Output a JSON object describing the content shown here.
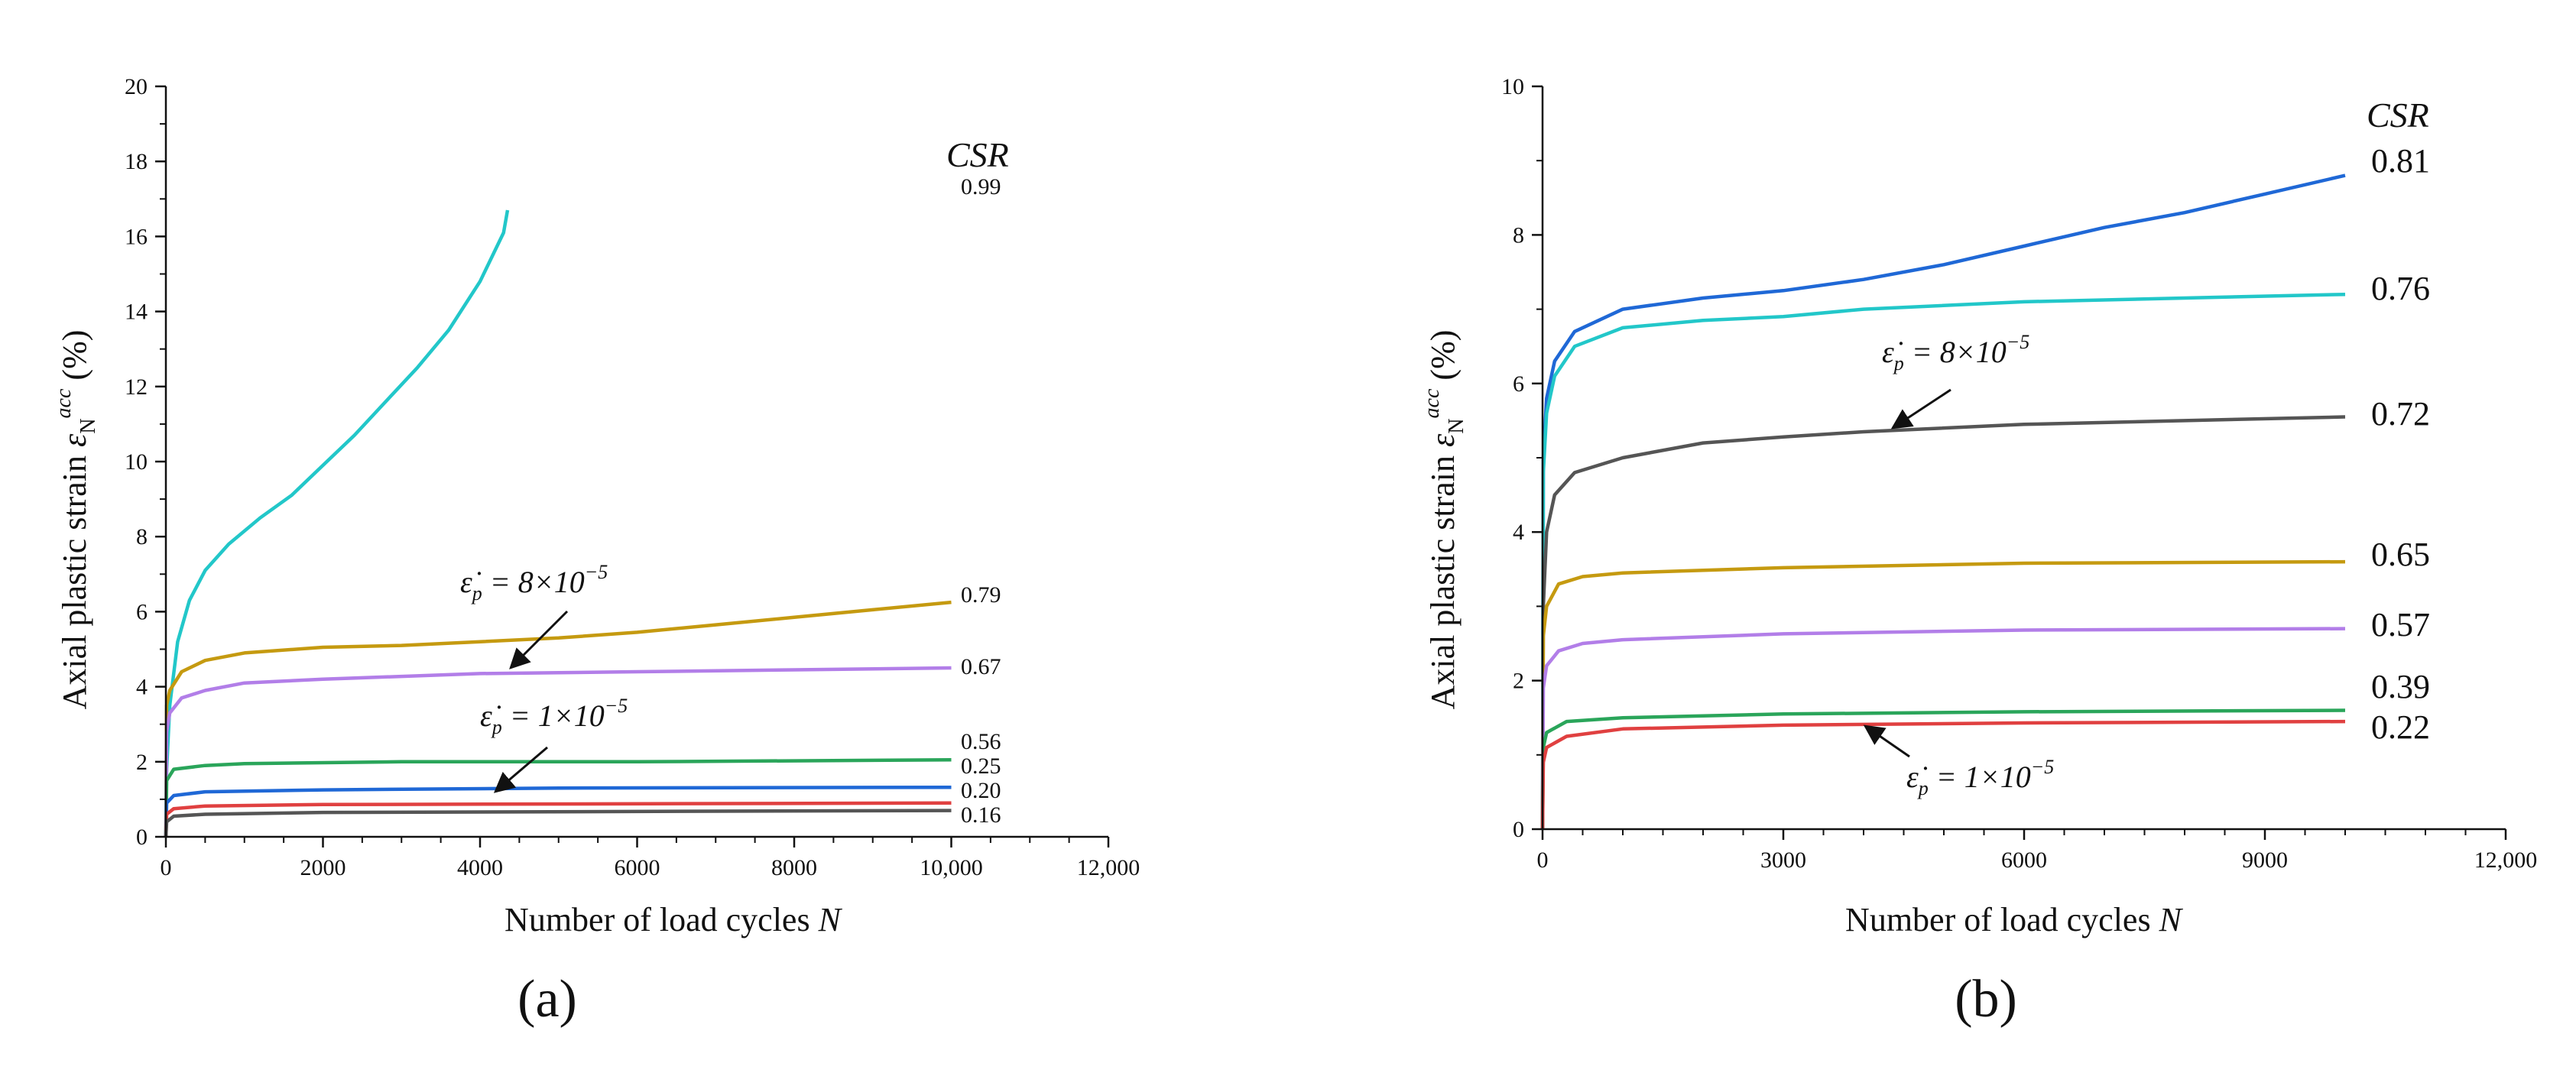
{
  "chart_data": [
    {
      "type": "line",
      "panel_label": "(a)",
      "xlabel": "Number of load cycles N",
      "ylabel": "Axial plastic strain ε_N^acc (%)",
      "xlim": [
        0,
        12000
      ],
      "ylim": [
        0,
        20
      ],
      "x_ticks": [
        "0",
        "2000",
        "4000",
        "6000",
        "8000",
        "10,000",
        "12,000"
      ],
      "y_ticks": [
        "0",
        "2",
        "4",
        "6",
        "8",
        "10",
        "12",
        "14",
        "16",
        "18",
        "20"
      ],
      "legend_title": "CSR",
      "grid": false,
      "series": [
        {
          "name": "0.99",
          "color": "#22c7c9",
          "points": [
            [
              0,
              0
            ],
            [
              10,
              1.8
            ],
            [
              50,
              3.5
            ],
            [
              150,
              5.2
            ],
            [
              300,
              6.3
            ],
            [
              500,
              7.1
            ],
            [
              800,
              7.8
            ],
            [
              1200,
              8.5
            ],
            [
              1600,
              9.1
            ],
            [
              2000,
              9.9
            ],
            [
              2400,
              10.7
            ],
            [
              2800,
              11.6
            ],
            [
              3200,
              12.5
            ],
            [
              3600,
              13.5
            ],
            [
              4000,
              14.8
            ],
            [
              4300,
              16.1
            ],
            [
              4350,
              16.7
            ]
          ]
        },
        {
          "name": "0.79",
          "color": "#c59a10",
          "points": [
            [
              0,
              0
            ],
            [
              10,
              3.5
            ],
            [
              50,
              3.9
            ],
            [
              200,
              4.4
            ],
            [
              500,
              4.7
            ],
            [
              1000,
              4.9
            ],
            [
              2000,
              5.05
            ],
            [
              3000,
              5.1
            ],
            [
              4000,
              5.2
            ],
            [
              5000,
              5.3
            ],
            [
              6000,
              5.45
            ],
            [
              7000,
              5.65
            ],
            [
              8000,
              5.85
            ],
            [
              9000,
              6.05
            ],
            [
              10000,
              6.25
            ]
          ]
        },
        {
          "name": "0.67",
          "color": "#b27ee8",
          "points": [
            [
              0,
              0
            ],
            [
              10,
              2.8
            ],
            [
              50,
              3.3
            ],
            [
              200,
              3.7
            ],
            [
              500,
              3.9
            ],
            [
              1000,
              4.1
            ],
            [
              2000,
              4.2
            ],
            [
              4000,
              4.35
            ],
            [
              6000,
              4.4
            ],
            [
              8000,
              4.45
            ],
            [
              10000,
              4.5
            ]
          ]
        },
        {
          "name": "0.56",
          "color": "#2aa55a",
          "points": [
            [
              0,
              0
            ],
            [
              10,
              1.5
            ],
            [
              100,
              1.8
            ],
            [
              500,
              1.9
            ],
            [
              1000,
              1.95
            ],
            [
              3000,
              2.0
            ],
            [
              6000,
              2.0
            ],
            [
              10000,
              2.05
            ]
          ]
        },
        {
          "name": "0.25",
          "color": "#1f68d6",
          "points": [
            [
              0,
              0
            ],
            [
              10,
              0.9
            ],
            [
              100,
              1.1
            ],
            [
              500,
              1.2
            ],
            [
              2000,
              1.25
            ],
            [
              5000,
              1.3
            ],
            [
              10000,
              1.32
            ]
          ]
        },
        {
          "name": "0.20",
          "color": "#e04040",
          "points": [
            [
              0,
              0
            ],
            [
              10,
              0.6
            ],
            [
              100,
              0.75
            ],
            [
              500,
              0.82
            ],
            [
              2000,
              0.86
            ],
            [
              10000,
              0.9
            ]
          ]
        },
        {
          "name": "0.16",
          "color": "#555555",
          "points": [
            [
              0,
              0
            ],
            [
              10,
              0.4
            ],
            [
              100,
              0.55
            ],
            [
              500,
              0.6
            ],
            [
              2000,
              0.65
            ],
            [
              10000,
              0.7
            ]
          ]
        }
      ],
      "annotations": [
        {
          "text": "ε̇p = 8×10−5"
        },
        {
          "text": "ε̇p = 1×10−5"
        }
      ]
    },
    {
      "type": "line",
      "panel_label": "(b)",
      "xlabel": "Number of load cycles N",
      "ylabel": "Axial plastic strain ε_N^acc (%)",
      "xlim": [
        0,
        12000
      ],
      "ylim": [
        0,
        10
      ],
      "x_ticks": [
        "0",
        "3000",
        "6000",
        "9000",
        "12,000"
      ],
      "y_ticks": [
        "0",
        "2",
        "4",
        "6",
        "8",
        "10"
      ],
      "legend_title": "CSR",
      "grid": false,
      "series": [
        {
          "name": "0.81",
          "color": "#1f68d6",
          "points": [
            [
              0,
              0
            ],
            [
              10,
              5.0
            ],
            [
              50,
              5.8
            ],
            [
              150,
              6.3
            ],
            [
              400,
              6.7
            ],
            [
              1000,
              7.0
            ],
            [
              2000,
              7.15
            ],
            [
              3000,
              7.25
            ],
            [
              4000,
              7.4
            ],
            [
              5000,
              7.6
            ],
            [
              6000,
              7.85
            ],
            [
              7000,
              8.1
            ],
            [
              8000,
              8.3
            ],
            [
              9000,
              8.55
            ],
            [
              10000,
              8.8
            ]
          ]
        },
        {
          "name": "0.76",
          "color": "#22c7c9",
          "points": [
            [
              0,
              0
            ],
            [
              10,
              4.8
            ],
            [
              50,
              5.6
            ],
            [
              150,
              6.1
            ],
            [
              400,
              6.5
            ],
            [
              1000,
              6.75
            ],
            [
              2000,
              6.85
            ],
            [
              3000,
              6.9
            ],
            [
              4000,
              7.0
            ],
            [
              6000,
              7.1
            ],
            [
              8000,
              7.15
            ],
            [
              10000,
              7.2
            ]
          ]
        },
        {
          "name": "0.72",
          "color": "#555555",
          "points": [
            [
              0,
              0
            ],
            [
              10,
              3.0
            ],
            [
              50,
              4.0
            ],
            [
              150,
              4.5
            ],
            [
              400,
              4.8
            ],
            [
              1000,
              5.0
            ],
            [
              2000,
              5.2
            ],
            [
              3000,
              5.28
            ],
            [
              4000,
              5.35
            ],
            [
              6000,
              5.45
            ],
            [
              8000,
              5.5
            ],
            [
              10000,
              5.55
            ]
          ]
        },
        {
          "name": "0.65",
          "color": "#c59a10",
          "points": [
            [
              0,
              0
            ],
            [
              10,
              2.6
            ],
            [
              50,
              3.0
            ],
            [
              200,
              3.3
            ],
            [
              500,
              3.4
            ],
            [
              1000,
              3.45
            ],
            [
              3000,
              3.52
            ],
            [
              6000,
              3.58
            ],
            [
              10000,
              3.6
            ]
          ]
        },
        {
          "name": "0.57",
          "color": "#b27ee8",
          "points": [
            [
              0,
              0
            ],
            [
              10,
              1.9
            ],
            [
              50,
              2.2
            ],
            [
              200,
              2.4
            ],
            [
              500,
              2.5
            ],
            [
              1000,
              2.55
            ],
            [
              3000,
              2.63
            ],
            [
              6000,
              2.68
            ],
            [
              10000,
              2.7
            ]
          ]
        },
        {
          "name": "0.39",
          "color": "#2aa55a",
          "points": [
            [
              0,
              0
            ],
            [
              10,
              1.1
            ],
            [
              50,
              1.3
            ],
            [
              300,
              1.45
            ],
            [
              1000,
              1.5
            ],
            [
              3000,
              1.55
            ],
            [
              6000,
              1.58
            ],
            [
              10000,
              1.6
            ]
          ]
        },
        {
          "name": "0.22",
          "color": "#e04040",
          "points": [
            [
              0,
              0
            ],
            [
              10,
              0.9
            ],
            [
              50,
              1.1
            ],
            [
              300,
              1.25
            ],
            [
              1000,
              1.35
            ],
            [
              3000,
              1.4
            ],
            [
              6000,
              1.43
            ],
            [
              10000,
              1.45
            ]
          ]
        }
      ],
      "annotations": [
        {
          "text": "ε̇p = 8×10−5"
        },
        {
          "text": "ε̇p = 1×10−5"
        }
      ]
    }
  ]
}
